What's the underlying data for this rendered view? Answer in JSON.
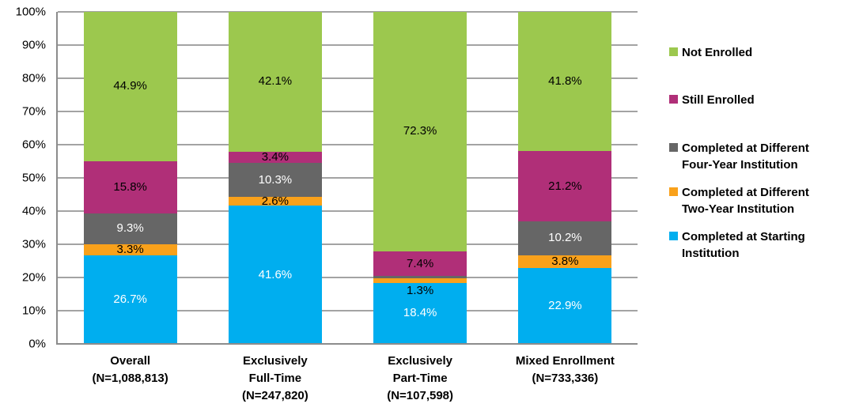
{
  "chart_data": {
    "type": "bar",
    "subtype": "stacked-100-percent",
    "title": "",
    "xlabel": "",
    "ylabel": "",
    "grid": true,
    "legend_position": "right",
    "y_axis": {
      "min": 0,
      "max": 100,
      "step": 10,
      "tick_suffix": "%"
    },
    "categories": [
      {
        "label_lines": [
          "Overall",
          "(N=1,088,813)"
        ]
      },
      {
        "label_lines": [
          "Exclusively",
          "Full-Time",
          "(N=247,820)"
        ]
      },
      {
        "label_lines": [
          "Exclusively",
          "Part-Time",
          "(N=107,598)"
        ]
      },
      {
        "label_lines": [
          "Mixed Enrollment",
          "(N=733,336)"
        ]
      }
    ],
    "series": [
      {
        "name": "Completed at Starting Institution",
        "color": "#00AEEF",
        "label_color": "#FFFFFF",
        "values": [
          26.7,
          41.6,
          18.4,
          22.9
        ]
      },
      {
        "name": "Completed at Different Two-Year Institution",
        "color": "#F9A11B",
        "label_color": "#000000",
        "values": [
          3.3,
          2.6,
          1.3,
          3.8
        ]
      },
      {
        "name": "Completed at Different Four-Year Institution",
        "color": "#666666",
        "label_color": "#FFFFFF",
        "values": [
          9.3,
          10.3,
          0.7,
          10.2
        ]
      },
      {
        "name": "Still Enrolled",
        "color": "#B02F78",
        "label_color": "#000000",
        "values": [
          15.8,
          3.4,
          7.4,
          21.2
        ]
      },
      {
        "name": "Not Enrolled",
        "color": "#9CC84E",
        "label_color": "#000000",
        "values": [
          44.9,
          42.1,
          72.3,
          41.8
        ]
      }
    ],
    "legend": [
      {
        "label": "Not Enrolled",
        "color": "#9CC84E"
      },
      {
        "label": "Still Enrolled",
        "color": "#B02F78"
      },
      {
        "label": "Completed at Different Four-Year Institution",
        "color": "#666666"
      },
      {
        "label": "Completed at Different Two-Year Institution",
        "color": "#F9A11B"
      },
      {
        "label": "Completed at Starting Institution",
        "color": "#00AEEF"
      }
    ],
    "colors": {
      "gridline": "#A3A3A3",
      "axis": "#8C8C8C",
      "background": "#FFFFFF"
    }
  }
}
